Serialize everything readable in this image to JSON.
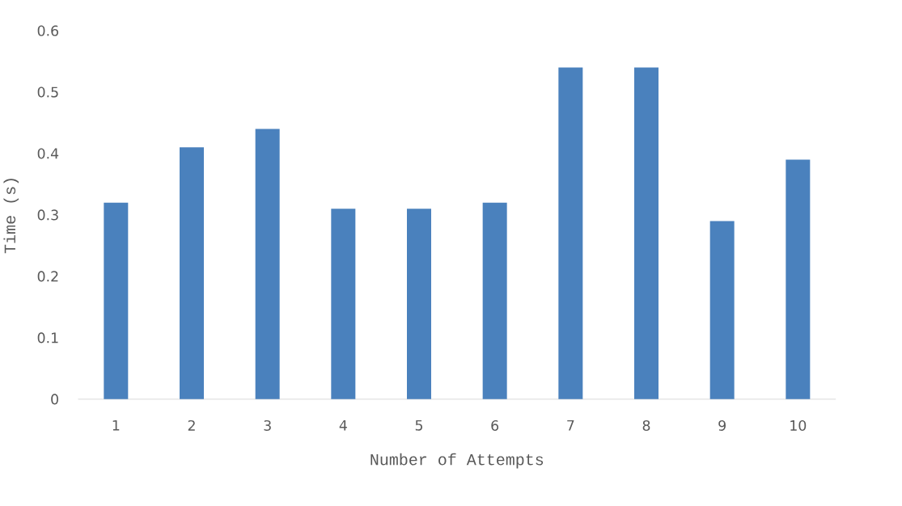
{
  "chart_data": {
    "type": "bar",
    "xlabel": "Number of Attempts",
    "ylabel": "Time (s)",
    "categories": [
      "1",
      "2",
      "3",
      "4",
      "5",
      "6",
      "7",
      "8",
      "9",
      "10"
    ],
    "values": [
      0.32,
      0.41,
      0.44,
      0.31,
      0.31,
      0.32,
      0.54,
      0.54,
      0.29,
      0.39
    ],
    "color": "#4a81bd",
    "ylim": [
      0,
      0.6
    ],
    "yticks": [
      0,
      0.1,
      0.2,
      0.3,
      0.4,
      0.5,
      0.6
    ]
  }
}
